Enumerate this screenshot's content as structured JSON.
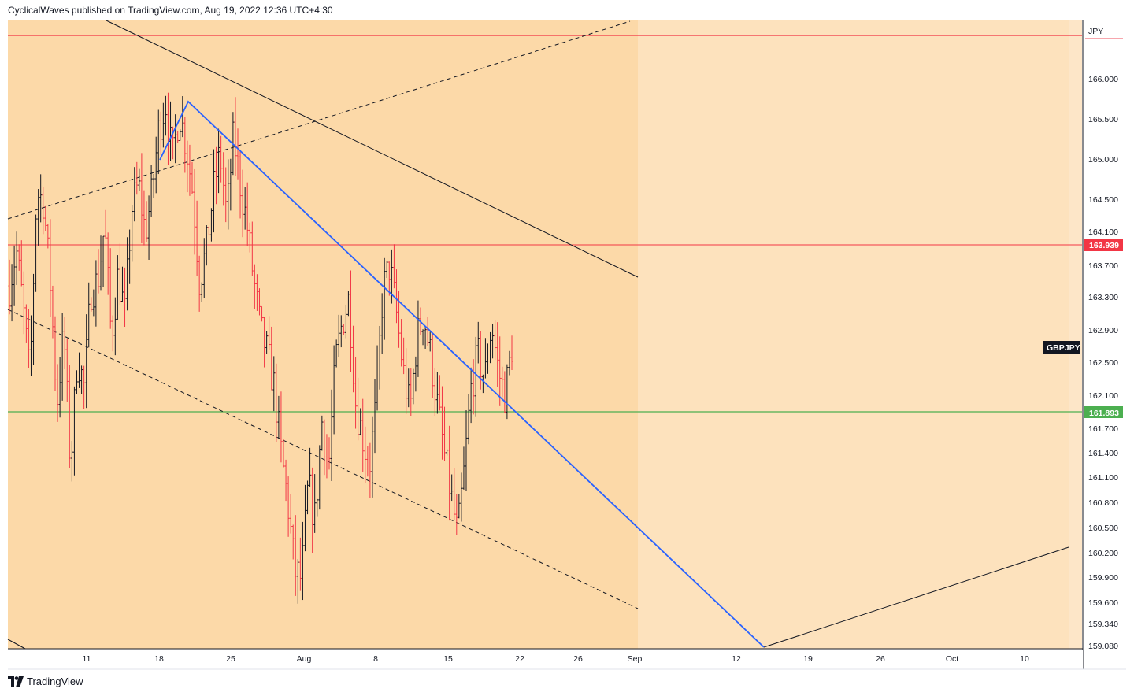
{
  "header": {
    "publisher_text": "CyclicalWaves published on TradingView.com, Aug 19, 2022 12:36 UTC+4:30"
  },
  "footer": {
    "brand": "TradingView",
    "logo_icon": "tradingview-logo-icon"
  },
  "chart_data": {
    "type": "candlestick",
    "symbol": "GBPJPY",
    "currency": "JPY",
    "y_ticks": [
      "166.000",
      "165.500",
      "165.000",
      "164.500",
      "164.100",
      "163.700",
      "163.300",
      "162.900",
      "162.500",
      "162.100",
      "161.700",
      "161.400",
      "161.100",
      "160.800",
      "160.500",
      "160.200",
      "159.900",
      "159.600",
      "159.340",
      "159.080"
    ],
    "x_ticks": [
      "11",
      "18",
      "25",
      "Aug",
      "8",
      "15",
      "22",
      "26",
      "Sep",
      "12",
      "19",
      "26",
      "Oct",
      "10"
    ],
    "price_labels": [
      {
        "value": "163.939",
        "color": "#f23645"
      },
      {
        "value": "161.893",
        "color": "#4caf50"
      }
    ],
    "colors": {
      "background_shade": "#fcd9a8",
      "background_light": "#fde2bd",
      "background_lightest": "#fde6c8",
      "candle_up": "#131722",
      "candle_down": "#f23645",
      "wave_line": "#2962ff",
      "support_line": "#4caf50",
      "resistance_line": "#f23645"
    },
    "candles_approx": [
      163.45,
      163.9,
      163.2,
      162.3,
      164.6,
      164.5,
      163.5,
      162.0,
      162.9,
      161.2,
      162.6,
      162.2,
      163.4,
      163.5,
      164.2,
      162.8,
      163.6,
      163.1,
      164.4,
      164.7,
      164.1,
      164.6,
      165.4,
      165.7,
      165.0,
      165.6,
      165.2,
      164.6,
      163.5,
      163.9,
      164.6,
      165.1,
      164.3,
      165.3,
      164.7,
      164.2,
      163.5,
      162.9,
      162.6,
      162.2,
      161.4,
      160.8,
      160.0,
      159.9,
      161.0,
      160.6,
      161.8,
      161.2,
      162.5,
      163.0,
      163.3,
      162.0,
      161.6,
      161.2,
      162.0,
      163.4,
      163.7,
      163.1,
      162.4,
      161.9,
      162.8,
      163.1,
      162.6,
      162.0,
      161.4,
      160.9,
      160.4,
      161.2,
      162.2,
      162.6,
      162.3,
      163.0,
      162.4,
      162.1,
      162.7
    ]
  }
}
